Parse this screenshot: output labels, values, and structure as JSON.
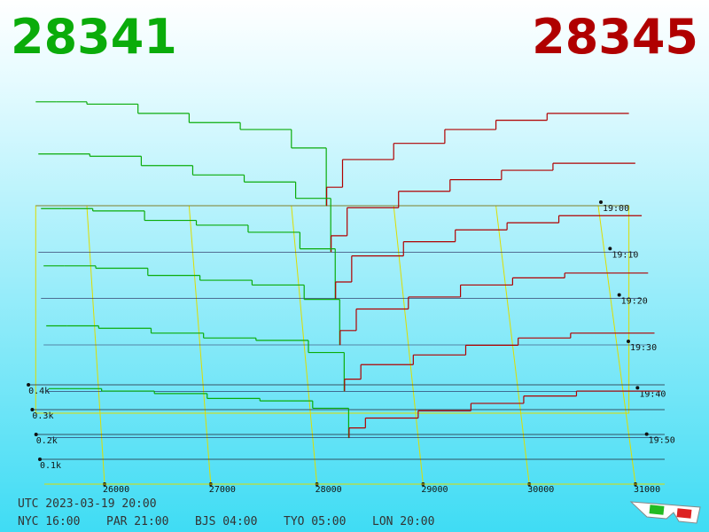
{
  "chart_data": {
    "type": "depth3d",
    "bid_price": "28341",
    "ask_price": "28345",
    "bid_color": "#0aac0a",
    "ask_color": "#b00000",
    "xlim": [
      25500,
      31300
    ],
    "xticks": [
      26000,
      27000,
      28000,
      29000,
      30000,
      31000
    ],
    "ylim": [
      0,
      0.5
    ],
    "yticks": [
      {
        "value": 0.1,
        "label": "0.1k"
      },
      {
        "value": 0.2,
        "label": "0.2k"
      },
      {
        "value": 0.3,
        "label": "0.3k"
      },
      {
        "value": 0.4,
        "label": "0.4k"
      }
    ],
    "bid_prices": [
      25700,
      26000,
      26500,
      27000,
      27500,
      28000,
      28341
    ],
    "ask_prices": [
      28345,
      28500,
      29000,
      29500,
      30000,
      30500,
      31000
    ],
    "snapshots": [
      {
        "time": "19:00",
        "bids": [
          0.45,
          0.44,
          0.4,
          0.36,
          0.33,
          0.25,
          0
        ],
        "asks": [
          0,
          0.08,
          0.2,
          0.27,
          0.33,
          0.37,
          0.4
        ]
      },
      {
        "time": "19:10",
        "bids": [
          0.42,
          0.41,
          0.37,
          0.33,
          0.3,
          0.23,
          0
        ],
        "asks": [
          0,
          0.07,
          0.19,
          0.26,
          0.31,
          0.35,
          0.38
        ]
      },
      {
        "time": "19:20",
        "bids": [
          0.38,
          0.37,
          0.33,
          0.31,
          0.28,
          0.21,
          0
        ],
        "asks": [
          0,
          0.07,
          0.18,
          0.24,
          0.29,
          0.32,
          0.35
        ]
      },
      {
        "time": "19:30",
        "bids": [
          0.33,
          0.32,
          0.29,
          0.27,
          0.25,
          0.19,
          0
        ],
        "asks": [
          0,
          0.06,
          0.15,
          0.2,
          0.25,
          0.28,
          0.3
        ]
      },
      {
        "time": "19:40",
        "bids": [
          0.27,
          0.26,
          0.24,
          0.22,
          0.21,
          0.16,
          0
        ],
        "asks": [
          0,
          0.05,
          0.11,
          0.15,
          0.19,
          0.22,
          0.24
        ]
      },
      {
        "time": "19:50",
        "bids": [
          0.2,
          0.19,
          0.18,
          0.16,
          0.15,
          0.12,
          0
        ],
        "asks": [
          0,
          0.04,
          0.08,
          0.11,
          0.14,
          0.17,
          0.19
        ]
      }
    ],
    "utc": "UTC 2023-03-19 20:00",
    "cities": [
      "NYC 16:00",
      "PAR 21:00",
      "BJS 04:00",
      "TYO 05:00",
      "LON 20:00"
    ]
  }
}
